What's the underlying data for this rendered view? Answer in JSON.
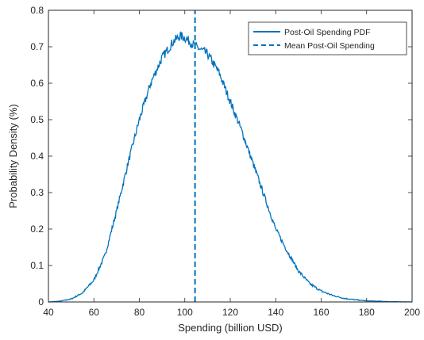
{
  "chart_data": {
    "type": "line",
    "xlabel": "Spending (billion USD)",
    "ylabel": "Probability Density (%)",
    "xlim": [
      40,
      200
    ],
    "ylim": [
      0,
      0.8
    ],
    "x_ticks": [
      "40",
      "60",
      "80",
      "100",
      "120",
      "140",
      "160",
      "180",
      "200"
    ],
    "y_ticks": [
      "0",
      "0.1",
      "0.2",
      "0.3",
      "0.4",
      "0.5",
      "0.6",
      "0.7",
      "0.8"
    ],
    "grid": false,
    "legend_position": "top-right",
    "colors": {
      "series": "#0072BD",
      "axis": "#262626"
    },
    "series": [
      {
        "name": "Post-Oil Spending PDF",
        "style": "solid",
        "x": [
          40,
          45,
          50,
          55,
          60,
          65,
          70,
          75,
          80,
          85,
          90,
          95,
          98,
          100,
          102,
          105,
          110,
          115,
          120,
          125,
          130,
          135,
          140,
          145,
          150,
          155,
          160,
          165,
          170,
          175,
          180,
          185,
          190,
          195,
          200
        ],
        "y": [
          0.0,
          0.002,
          0.008,
          0.025,
          0.06,
          0.13,
          0.25,
          0.38,
          0.5,
          0.6,
          0.67,
          0.715,
          0.73,
          0.725,
          0.715,
          0.7,
          0.68,
          0.63,
          0.55,
          0.47,
          0.38,
          0.29,
          0.2,
          0.14,
          0.085,
          0.05,
          0.03,
          0.018,
          0.01,
          0.006,
          0.003,
          0.002,
          0.001,
          0.0005,
          0.0
        ]
      },
      {
        "name": "Mean Post-Oil Spending",
        "style": "dashed",
        "x": [
          104.5,
          104.5
        ],
        "y": [
          0,
          0.8
        ]
      }
    ]
  }
}
